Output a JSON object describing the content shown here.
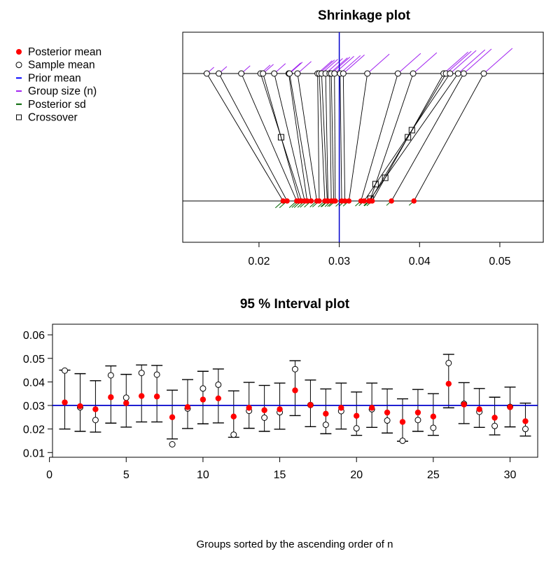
{
  "colors": {
    "posterior_mean": "#ff0000",
    "sample_mean": "#000000",
    "prior_mean": "#0000cc",
    "group_size": "#a020f0",
    "posterior_sd": "#006400",
    "crossover": "#000000",
    "axes": "#000000"
  },
  "legend": {
    "entries": [
      {
        "label": "Posterior mean",
        "symbol": "filled-circle",
        "color": "#ff0000"
      },
      {
        "label": "Sample mean",
        "symbol": "open-circle",
        "color": "#000000"
      },
      {
        "label": "Prior mean",
        "symbol": "dash",
        "color": "#0000ff"
      },
      {
        "label": "Group size (n)",
        "symbol": "dash",
        "color": "#a020f0"
      },
      {
        "label": "Posterior sd",
        "symbol": "dash",
        "color": "#006400"
      },
      {
        "label": "Crossover",
        "symbol": "open-square",
        "color": "#000000"
      }
    ]
  },
  "chart_data": [
    {
      "type": "scatter",
      "title": "Shrinkage plot",
      "xlim": [
        0.0105,
        0.0555
      ],
      "x_ticks": [
        0.02,
        0.03,
        0.04,
        0.05
      ],
      "x_tick_labels": [
        "0.02",
        "0.03",
        "0.04",
        "0.05"
      ],
      "prior_mean": 0.03,
      "sample_means": [
        0.0135,
        0.015,
        0.0178,
        0.0202,
        0.0205,
        0.0219,
        0.0237,
        0.0238,
        0.0248,
        0.0273,
        0.0275,
        0.0278,
        0.0283,
        0.0288,
        0.029,
        0.0294,
        0.0301,
        0.0305,
        0.0335,
        0.0373,
        0.0392,
        0.043,
        0.0433,
        0.0438,
        0.0448,
        0.0455,
        0.048
      ],
      "posterior_means": [
        0.023,
        0.0235,
        0.0247,
        0.0253,
        0.025,
        0.0257,
        0.026,
        0.0265,
        0.0272,
        0.0275,
        0.0282,
        0.0285,
        0.0286,
        0.029,
        0.0293,
        0.0295,
        0.0303,
        0.0307,
        0.0312,
        0.0327,
        0.0338,
        0.0341,
        0.0338,
        0.0331,
        0.0337,
        0.0365,
        0.0393
      ]
    },
    {
      "type": "errorbar",
      "title": "95 % Interval plot",
      "xlabel": "Groups sorted by the ascending order of n",
      "xlim": [
        0.2,
        31.8
      ],
      "ylim": [
        0.008,
        0.0645
      ],
      "x_ticks": [
        0,
        5,
        10,
        15,
        20,
        25,
        30
      ],
      "y_ticks": [
        0.01,
        0.02,
        0.03,
        0.04,
        0.05,
        0.06
      ],
      "y_tick_labels": [
        "0.01",
        "0.02",
        "0.03",
        "0.04",
        "0.05",
        "0.06"
      ],
      "prior_mean": 0.03,
      "groups": [
        1,
        2,
        3,
        4,
        5,
        6,
        7,
        8,
        9,
        10,
        11,
        12,
        13,
        14,
        15,
        16,
        17,
        18,
        19,
        20,
        21,
        22,
        23,
        24,
        25,
        26,
        27,
        28,
        29,
        30,
        31
      ],
      "posterior_mean": [
        0.0313,
        0.0297,
        0.0284,
        0.0335,
        0.031,
        0.034,
        0.0338,
        0.025,
        0.0293,
        0.0325,
        0.033,
        0.0253,
        0.029,
        0.028,
        0.0284,
        0.0364,
        0.0302,
        0.0265,
        0.029,
        0.0256,
        0.029,
        0.027,
        0.023,
        0.027,
        0.0253,
        0.0392,
        0.0304,
        0.0284,
        0.0248,
        0.0293,
        0.0233
      ],
      "sample_mean": [
        0.0448,
        0.0292,
        0.0238,
        0.0428,
        0.0333,
        0.0438,
        0.0431,
        0.0135,
        0.0287,
        0.0372,
        0.0388,
        0.0176,
        0.0277,
        0.0248,
        0.0271,
        0.0454,
        0.0302,
        0.0218,
        0.0276,
        0.0203,
        0.0284,
        0.0236,
        0.015,
        0.0238,
        0.0205,
        0.048,
        0.0307,
        0.0273,
        0.0213,
        0.0294,
        0.02
      ],
      "lower": [
        0.02,
        0.019,
        0.0187,
        0.0225,
        0.0208,
        0.023,
        0.023,
        0.0158,
        0.0202,
        0.0222,
        0.0226,
        0.0165,
        0.0203,
        0.019,
        0.0199,
        0.0257,
        0.021,
        0.018,
        0.02,
        0.0173,
        0.0207,
        0.0183,
        0.0148,
        0.019,
        0.0173,
        0.029,
        0.0223,
        0.0207,
        0.0175,
        0.0209,
        0.017
      ],
      "upper": [
        0.045,
        0.0435,
        0.0405,
        0.0468,
        0.0432,
        0.0472,
        0.047,
        0.0365,
        0.041,
        0.0445,
        0.0455,
        0.0362,
        0.0398,
        0.0385,
        0.0395,
        0.049,
        0.0408,
        0.037,
        0.0395,
        0.0357,
        0.0395,
        0.037,
        0.0328,
        0.0368,
        0.035,
        0.0517,
        0.0397,
        0.0372,
        0.0335,
        0.0378,
        0.031
      ]
    }
  ]
}
